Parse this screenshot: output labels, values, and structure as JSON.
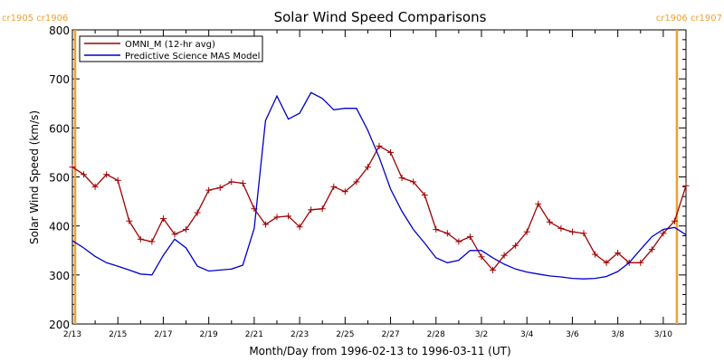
{
  "chart_data": {
    "type": "line",
    "title": "Solar Wind Speed Comparisons",
    "xlabel": "Month/Day from 1996-02-13 to 1996-03-11 (UT)",
    "ylabel": "Solar Wind Speed (km/s)",
    "ylim": [
      200,
      800
    ],
    "yticks": [
      200,
      300,
      400,
      500,
      600,
      700,
      800
    ],
    "xlim": [
      0,
      27
    ],
    "x_tick_positions": [
      0,
      2,
      4,
      6,
      8,
      10,
      12,
      14,
      16,
      18,
      20,
      22,
      24,
      26
    ],
    "x_tick_labels": [
      "2/13",
      "2/15",
      "2/17",
      "2/19",
      "2/21",
      "2/23",
      "2/25",
      "2/27",
      "2/28",
      "3/2",
      "3/4",
      "3/6",
      "3/8",
      "3/10"
    ],
    "legend_position": "top-left",
    "rotation_boundaries": [
      {
        "x": 0.12,
        "label": "cr1905 cr1906",
        "side": "left",
        "color": "#f0a030"
      },
      {
        "x": 26.6,
        "label": "cr1906 cr1907",
        "side": "right",
        "color": "#f0a030"
      }
    ],
    "series": [
      {
        "name": "OMNI_M (12-hr avg)",
        "color": "#a00000",
        "marker": "+",
        "x": [
          0.0,
          0.5,
          1.0,
          1.5,
          2.0,
          2.5,
          3.0,
          3.5,
          4.0,
          4.5,
          5.0,
          5.5,
          6.0,
          6.5,
          7.0,
          7.5,
          8.0,
          8.5,
          9.0,
          9.5,
          10.0,
          10.5,
          11.0,
          11.5,
          12.0,
          12.5,
          13.0,
          13.5,
          14.0,
          14.5,
          15.0,
          15.5,
          16.0,
          16.5,
          17.0,
          17.5,
          18.0,
          18.5,
          19.0,
          19.5,
          20.0,
          20.5,
          21.0,
          21.5,
          22.0,
          22.5,
          23.0,
          23.5,
          24.0,
          24.5,
          25.0,
          25.5,
          26.0,
          26.5,
          27.0
        ],
        "y": [
          520,
          505,
          480,
          505,
          493,
          410,
          373,
          368,
          415,
          383,
          393,
          427,
          473,
          478,
          490,
          487,
          435,
          403,
          418,
          420,
          398,
          433,
          435,
          480,
          470,
          490,
          520,
          563,
          550,
          498,
          490,
          463,
          393,
          385,
          368,
          378,
          337,
          310,
          340,
          360,
          388,
          445,
          408,
          395,
          388,
          385,
          342,
          325,
          345,
          325,
          325,
          352,
          385,
          410,
          482
        ]
      },
      {
        "name": "Predictive Science MAS Model",
        "color": "#0000cc",
        "x": [
          0.0,
          0.5,
          1.0,
          1.5,
          2.0,
          2.5,
          3.0,
          3.5,
          4.0,
          4.5,
          5.0,
          5.5,
          6.0,
          6.5,
          7.0,
          7.5,
          8.0,
          8.5,
          9.0,
          9.5,
          10.0,
          10.5,
          11.0,
          11.5,
          12.0,
          12.5,
          13.0,
          13.5,
          14.0,
          14.5,
          15.0,
          15.5,
          16.0,
          16.5,
          17.0,
          17.5,
          18.0,
          18.5,
          19.0,
          19.5,
          20.0,
          20.5,
          21.0,
          21.5,
          22.0,
          22.5,
          23.0,
          23.5,
          24.0,
          24.5,
          25.0,
          25.5,
          26.0,
          26.5,
          27.0
        ],
        "y": [
          370,
          355,
          338,
          325,
          318,
          310,
          302,
          300,
          340,
          373,
          355,
          318,
          308,
          310,
          312,
          320,
          395,
          615,
          665,
          618,
          630,
          672,
          660,
          637,
          640,
          640,
          595,
          540,
          475,
          430,
          393,
          365,
          335,
          325,
          330,
          350,
          350,
          335,
          322,
          312,
          306,
          302,
          298,
          296,
          293,
          292,
          293,
          297,
          307,
          325,
          352,
          378,
          393,
          397,
          382
        ]
      }
    ]
  }
}
